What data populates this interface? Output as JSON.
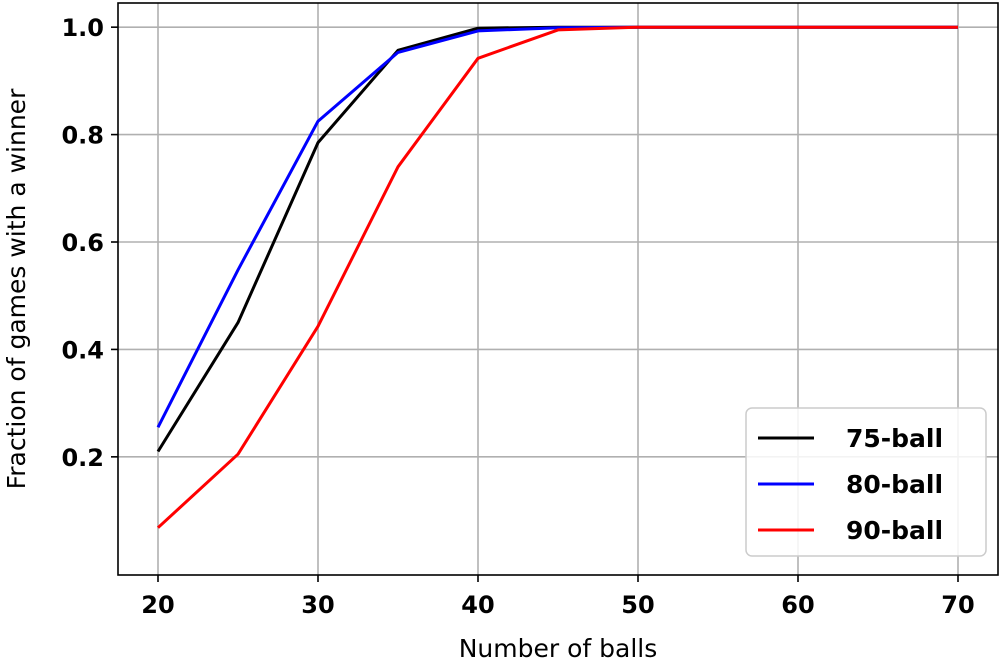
{
  "chart_data": {
    "type": "line",
    "title": "",
    "xlabel": "Number of balls",
    "ylabel": "Fraction of games with a winner",
    "x": [
      20,
      25,
      30,
      35,
      40,
      45,
      50,
      55,
      60,
      65,
      70
    ],
    "xlim": [
      17.5,
      72.5
    ],
    "ylim": [
      -0.02,
      1.045
    ],
    "xticks": [
      20,
      30,
      40,
      50,
      60,
      70
    ],
    "yticks": [
      0.2,
      0.4,
      0.6,
      0.8,
      1.0
    ],
    "xtick_labels": [
      "20",
      "30",
      "40",
      "50",
      "60",
      "70"
    ],
    "ytick_labels": [
      "0.2",
      "0.4",
      "0.6",
      "0.8",
      "1.0"
    ],
    "grid": true,
    "legend_position": "bottom-right",
    "series": [
      {
        "name": "75-ball",
        "color": "#000000",
        "values": [
          0.21,
          0.45,
          0.785,
          0.957,
          0.998,
          1.0,
          1.0,
          1.0,
          1.0,
          1.0,
          1.0
        ]
      },
      {
        "name": "80-ball",
        "color": "#0000ff",
        "values": [
          0.255,
          0.548,
          0.825,
          0.953,
          0.993,
          0.999,
          1.0,
          1.0,
          1.0,
          1.0,
          1.0
        ]
      },
      {
        "name": "90-ball",
        "color": "#ff0000",
        "values": [
          0.068,
          0.205,
          0.443,
          0.74,
          0.942,
          0.995,
          1.0,
          1.0,
          1.0,
          1.0,
          1.0
        ]
      }
    ]
  }
}
